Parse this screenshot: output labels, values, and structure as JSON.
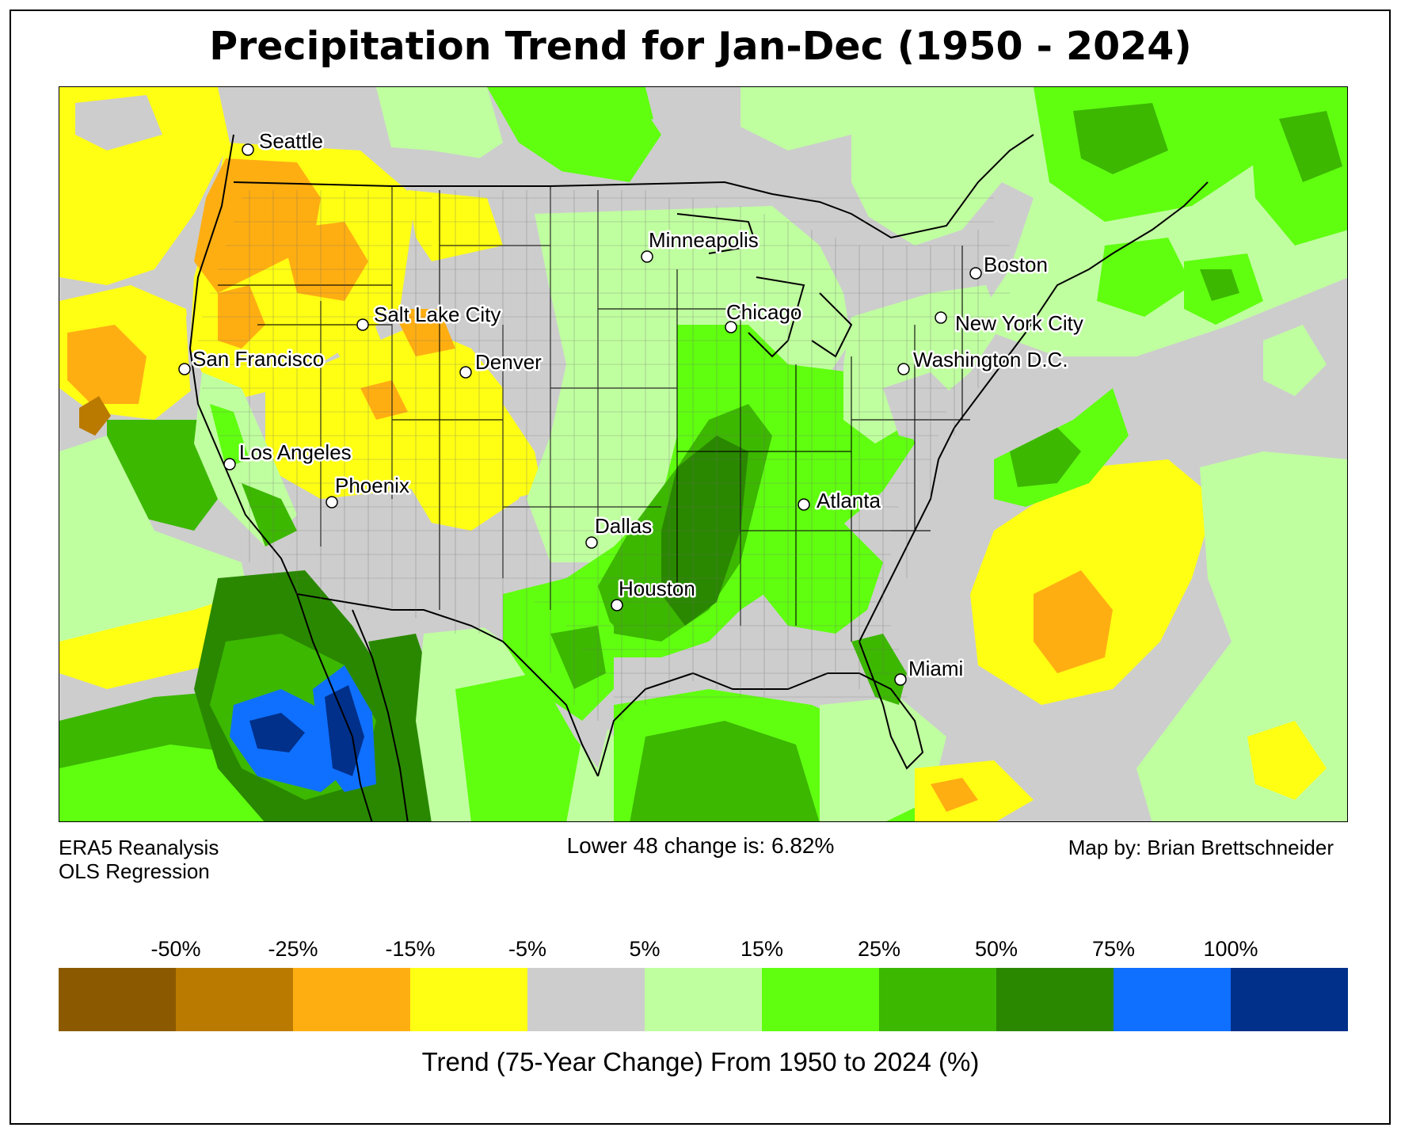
{
  "title": "Precipitation Trend for Jan-Dec (1950 - 2024)",
  "footer": {
    "source_line1": "ERA5 Reanalysis",
    "source_line2": "OLS Regression",
    "change_text": "Lower 48 change is: 6.82%",
    "credit": "Map by: Brian Brettschneider"
  },
  "legend": {
    "title": "Trend (75-Year Change) From 1950 to 2024 (%)",
    "ticks": [
      "-50%",
      "-25%",
      "-15%",
      "-5%",
      "5%",
      "15%",
      "25%",
      "50%",
      "75%",
      "100%"
    ],
    "colors": [
      "#8B5A00",
      "#BA7A00",
      "#FFAE12",
      "#FFFF14",
      "#CDCDCD",
      "#C0FFA0",
      "#60FF10",
      "#3CB800",
      "#2A8800",
      "#0F70FF",
      "#00308A"
    ]
  },
  "cities": [
    {
      "name": "Seattle"
    },
    {
      "name": "San Francisco"
    },
    {
      "name": "Los Angeles"
    },
    {
      "name": "Phoenix"
    },
    {
      "name": "Salt Lake City"
    },
    {
      "name": "Denver"
    },
    {
      "name": "Minneapolis"
    },
    {
      "name": "Chicago"
    },
    {
      "name": "Dallas"
    },
    {
      "name": "Houston"
    },
    {
      "name": "Atlanta"
    },
    {
      "name": "Miami"
    },
    {
      "name": "Washington D.C."
    },
    {
      "name": "New York City"
    },
    {
      "name": "Boston"
    }
  ]
}
